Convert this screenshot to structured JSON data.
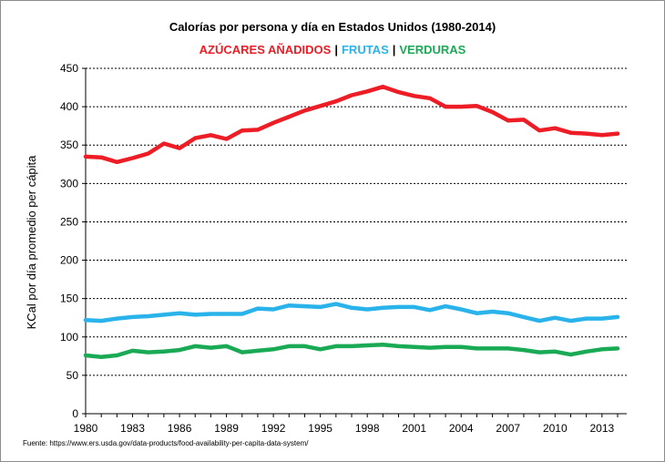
{
  "chart_data": {
    "type": "line",
    "title": "Calorías por persona y día en Estados Unidos (1980-2014)",
    "legend_placement": "top-center, under title",
    "ylabel": "KCal por día promedio per cápita",
    "xlabel": "",
    "ylim": [
      0,
      450
    ],
    "yticks": [
      0,
      50,
      100,
      150,
      200,
      250,
      300,
      350,
      400,
      450
    ],
    "xlim": [
      1980,
      2014
    ],
    "xticks": [
      1980,
      1983,
      1986,
      1989,
      1992,
      1995,
      1998,
      2001,
      2004,
      2007,
      2010,
      2013
    ],
    "grid": "horizontal dashed",
    "x": [
      1980,
      1981,
      1982,
      1983,
      1984,
      1985,
      1986,
      1987,
      1988,
      1989,
      1990,
      1991,
      1992,
      1993,
      1994,
      1995,
      1996,
      1997,
      1998,
      1999,
      2000,
      2001,
      2002,
      2003,
      2004,
      2005,
      2006,
      2007,
      2008,
      2009,
      2010,
      2011,
      2012,
      2013,
      2014
    ],
    "series": [
      {
        "name": "AZÚCARES AÑADIDOS",
        "color": "#ee1c25",
        "values": [
          335,
          334,
          328,
          333,
          339,
          352,
          346,
          359,
          363,
          358,
          369,
          370,
          379,
          387,
          395,
          401,
          407,
          415,
          420,
          426,
          419,
          414,
          411,
          400,
          400,
          401,
          393,
          382,
          383,
          369,
          372,
          366,
          365,
          363,
          365
        ]
      },
      {
        "name": "FRUTAS",
        "color": "#2ab3ea",
        "values": [
          122,
          121,
          124,
          126,
          127,
          129,
          131,
          129,
          130,
          130,
          130,
          137,
          136,
          141,
          140,
          139,
          143,
          138,
          136,
          138,
          139,
          139,
          135,
          140,
          136,
          131,
          133,
          131,
          126,
          121,
          125,
          121,
          124,
          124,
          126
        ]
      },
      {
        "name": "VERDURAS",
        "color": "#1aaa55",
        "values": [
          76,
          74,
          76,
          82,
          80,
          81,
          83,
          88,
          86,
          88,
          80,
          82,
          84,
          88,
          88,
          84,
          88,
          88,
          89,
          90,
          88,
          87,
          86,
          87,
          87,
          85,
          85,
          85,
          83,
          80,
          81,
          77,
          81,
          84,
          85
        ]
      }
    ],
    "source": "Fuente: https://www.ers.usda.gov/data-products/food-availability-per-capita-data-system/"
  }
}
